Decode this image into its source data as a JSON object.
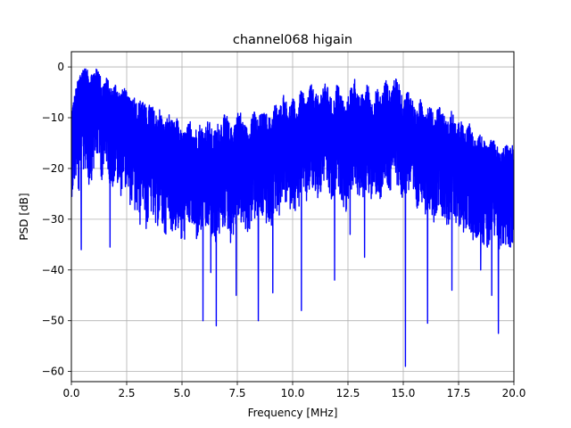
{
  "chart_data": {
    "type": "line",
    "title": "channel068 higain",
    "xlabel": "Frequency [MHz]",
    "ylabel": "PSD [dB]",
    "xlim": [
      0,
      20
    ],
    "ylim": [
      -62,
      3
    ],
    "grid": true,
    "x_ticks": [
      0,
      2.5,
      5,
      7.5,
      10,
      12.5,
      15,
      17.5,
      20
    ],
    "x_tick_labels": [
      "0.0",
      "2.5",
      "5.0",
      "7.5",
      "10.0",
      "12.5",
      "15.0",
      "17.5",
      "20.0"
    ],
    "y_ticks": [
      0,
      -10,
      -20,
      -30,
      -40,
      -50,
      -60
    ],
    "y_tick_labels": [
      "0",
      "−10",
      "−20",
      "−30",
      "−40",
      "−50",
      "−60"
    ],
    "series": [
      {
        "color": "#0000ff",
        "x": [
          0.0,
          0.2,
          0.4,
          0.6,
          0.8,
          1.0,
          1.2,
          1.4,
          1.6,
          1.8,
          2.0,
          2.2,
          2.4,
          2.6,
          2.8,
          3.0,
          3.2,
          3.4,
          3.6,
          3.8,
          4.0,
          4.2,
          4.4,
          4.6,
          4.8,
          5.0,
          5.2,
          5.4,
          5.6,
          5.8,
          6.0,
          6.2,
          6.4,
          6.6,
          6.8,
          7.0,
          7.2,
          7.4,
          7.6,
          7.8,
          8.0,
          8.2,
          8.4,
          8.6,
          8.8,
          9.0,
          9.2,
          9.4,
          9.6,
          9.8,
          10.0,
          10.2,
          10.4,
          10.6,
          10.8,
          11.0,
          11.2,
          11.4,
          11.6,
          11.8,
          12.0,
          12.2,
          12.4,
          12.6,
          12.8,
          13.0,
          13.2,
          13.4,
          13.6,
          13.8,
          14.0,
          14.2,
          14.4,
          14.6,
          14.8,
          15.0,
          15.2,
          15.4,
          15.6,
          15.8,
          16.0,
          16.2,
          16.4,
          16.6,
          16.8,
          17.0,
          17.2,
          17.4,
          17.6,
          17.8,
          18.0,
          18.2,
          18.4,
          18.6,
          18.8,
          19.0,
          19.2,
          19.4,
          19.6,
          19.8,
          20.0
        ],
        "values": [
          -15,
          -12,
          -5,
          -2,
          -8,
          -4,
          -3,
          -10,
          -6,
          -12,
          -8,
          -11,
          -7,
          -14,
          -12,
          -15,
          -10,
          -17,
          -13,
          -18,
          -15,
          -20,
          -16,
          -19,
          -18,
          -22,
          -20,
          -18,
          -21,
          -19,
          -20,
          -18,
          -22,
          -20,
          -19,
          -17,
          -21,
          -18,
          -16,
          -19,
          -20,
          -15,
          -18,
          -16,
          -17,
          -19,
          -14,
          -16,
          -12,
          -15,
          -13,
          -16,
          -11,
          -14,
          -10,
          -12,
          -13,
          -9,
          -11,
          -14,
          -10,
          -12,
          -15,
          -11,
          -9,
          -13,
          -12,
          -10,
          -14,
          -11,
          -13,
          -9,
          -12,
          -8,
          -10,
          -14,
          -11,
          -13,
          -16,
          -12,
          -15,
          -14,
          -17,
          -13,
          -16,
          -18,
          -15,
          -19,
          -17,
          -20,
          -18,
          -22,
          -19,
          -21,
          -23,
          -20,
          -22,
          -24,
          -21,
          -23,
          -22
        ],
        "upper": [
          -8,
          -4,
          -1,
          0,
          -1,
          -1,
          0,
          -3,
          -2,
          -4,
          -3,
          -5,
          -4,
          -6,
          -5,
          -7,
          -6,
          -8,
          -7,
          -9,
          -8,
          -11,
          -9,
          -11,
          -10,
          -13,
          -12,
          -10,
          -12,
          -11,
          -12,
          -10,
          -13,
          -11,
          -10,
          -9,
          -12,
          -10,
          -8,
          -11,
          -12,
          -8,
          -10,
          -9,
          -9,
          -10,
          -7,
          -8,
          -5,
          -8,
          -6,
          -8,
          -4,
          -7,
          -3,
          -5,
          -6,
          -3,
          -4,
          -7,
          -3,
          -5,
          -8,
          -4,
          -2,
          -6,
          -5,
          -3,
          -7,
          -4,
          -6,
          -2,
          -5,
          -2,
          -3,
          -7,
          -4,
          -6,
          -9,
          -6,
          -8,
          -7,
          -10,
          -7,
          -9,
          -11,
          -8,
          -12,
          -10,
          -13,
          -11,
          -14,
          -12,
          -14,
          -16,
          -14,
          -15,
          -17,
          -15,
          -16,
          -15
        ],
        "lower": [
          -26,
          -22,
          -28,
          -20,
          -24,
          -21,
          -18,
          -23,
          -19,
          -25,
          -22,
          -26,
          -23,
          -27,
          -28,
          -31,
          -26,
          -33,
          -29,
          -33,
          -30,
          -34,
          -31,
          -33,
          -32,
          -36,
          -33,
          -31,
          -35,
          -33,
          -35,
          -32,
          -36,
          -34,
          -33,
          -31,
          -35,
          -32,
          -30,
          -33,
          -34,
          -29,
          -32,
          -30,
          -31,
          -33,
          -28,
          -30,
          -26,
          -29,
          -27,
          -30,
          -25,
          -28,
          -24,
          -26,
          -27,
          -23,
          -25,
          -28,
          -24,
          -26,
          -29,
          -25,
          -23,
          -27,
          -26,
          -24,
          -28,
          -25,
          -27,
          -23,
          -26,
          -22,
          -24,
          -28,
          -25,
          -27,
          -30,
          -26,
          -29,
          -28,
          -31,
          -27,
          -30,
          -32,
          -29,
          -33,
          -31,
          -34,
          -32,
          -35,
          -33,
          -35,
          -37,
          -34,
          -36,
          -37,
          -35,
          -36,
          -35
        ],
        "dips": [
          [
            0.45,
            -36
          ],
          [
            1.75,
            -35.5
          ],
          [
            5.95,
            -50
          ],
          [
            6.3,
            -40.5
          ],
          [
            6.55,
            -51
          ],
          [
            7.45,
            -45
          ],
          [
            8.45,
            -50
          ],
          [
            9.1,
            -44.5
          ],
          [
            10.4,
            -48
          ],
          [
            11.9,
            -42
          ],
          [
            13.25,
            -37.5
          ],
          [
            15.1,
            -59
          ],
          [
            16.1,
            -50.5
          ],
          [
            17.2,
            -44
          ],
          [
            19.0,
            -45
          ],
          [
            19.3,
            -52.5
          ],
          [
            18.5,
            -40
          ],
          [
            3.1,
            -31
          ],
          [
            12.6,
            -33
          ]
        ]
      }
    ]
  }
}
